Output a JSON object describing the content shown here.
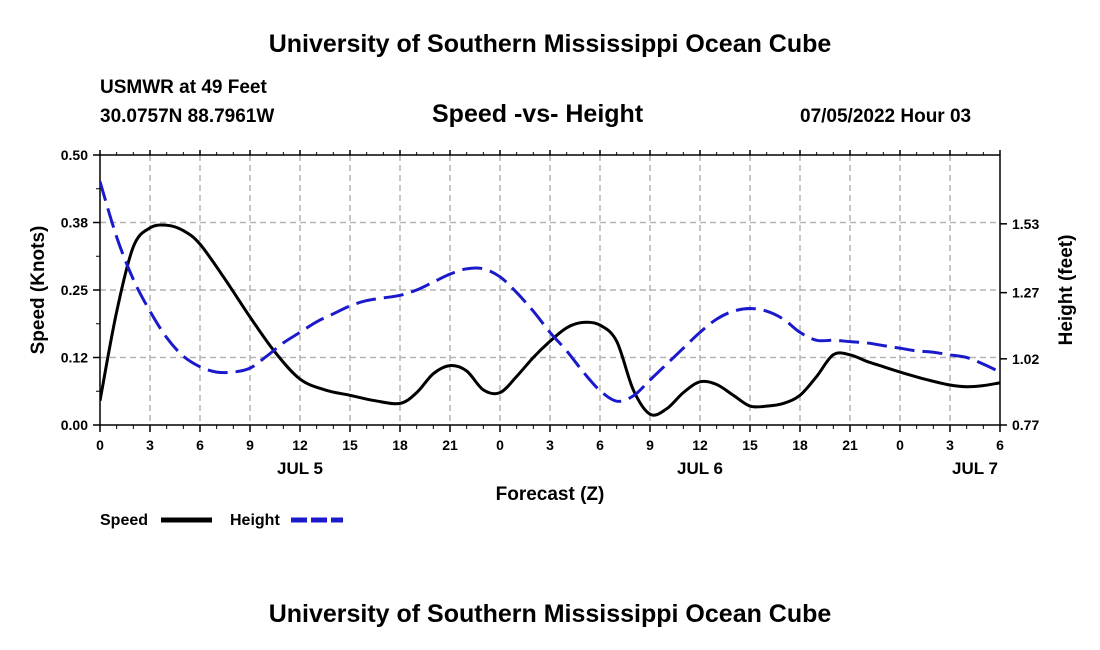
{
  "header": {
    "title": "University of Southern Mississippi Ocean Cube",
    "station": "USMWR at 49 Feet",
    "coords": "30.0757N  88.7961W",
    "chart_title": "Speed -vs- Height",
    "run_time": "07/05/2022 Hour 03"
  },
  "footer": {
    "title": "University of Southern Mississippi Ocean Cube"
  },
  "colors": {
    "speed": "#000000",
    "height": "#1a1acc",
    "grid": "#b4b4b4"
  },
  "chart_data": {
    "type": "line",
    "title": "Speed -vs- Height",
    "xlabel": "Forecast (Z)",
    "ylabel_left": "Speed (Knots)",
    "ylabel_right": "Height (feet)",
    "xlim": [
      0,
      54
    ],
    "ylim_left": [
      0,
      0.5
    ],
    "ylim_right": [
      0.77,
      1.79
    ],
    "x_ticks": [
      0,
      3,
      6,
      9,
      12,
      15,
      18,
      21,
      24,
      27,
      30,
      33,
      36,
      39,
      42,
      45,
      48,
      51,
      54
    ],
    "x_tick_labels": [
      "0",
      "3",
      "6",
      "9",
      "12",
      "15",
      "18",
      "21",
      "0",
      "3",
      "6",
      "9",
      "12",
      "15",
      "18",
      "21",
      "0",
      "3",
      "6"
    ],
    "day_labels": [
      {
        "x": 12,
        "label": "JUL 5"
      },
      {
        "x": 36,
        "label": "JUL 6"
      },
      {
        "x": 52.5,
        "label": "JUL 7"
      }
    ],
    "y_left_ticks": [
      0.0,
      0.125,
      0.25,
      0.375,
      0.5
    ],
    "y_left_tick_labels": [
      "0.00",
      "0.12",
      "0.25",
      "0.38",
      "0.50"
    ],
    "y_right_ticks": [
      0.77,
      1.02,
      1.27,
      1.53
    ],
    "y_right_tick_labels": [
      "0.77",
      "1.02",
      "1.27",
      "1.53"
    ],
    "grid": true,
    "legend_position": "bottom-left",
    "series": [
      {
        "name": "Speed",
        "axis": "left",
        "style": "solid",
        "x": [
          0,
          1,
          2,
          3,
          4,
          5,
          6,
          7.5,
          9,
          10.5,
          12,
          13.5,
          15,
          16.5,
          18,
          19,
          20,
          21,
          22,
          23,
          24,
          25,
          26,
          27,
          28,
          29,
          30,
          31,
          32,
          33,
          34,
          35,
          36,
          37,
          38,
          39,
          40,
          41,
          42,
          43,
          44,
          45,
          46,
          47,
          48,
          49,
          50,
          51,
          52,
          53,
          54
        ],
        "values": [
          0.045,
          0.21,
          0.33,
          0.365,
          0.37,
          0.36,
          0.335,
          0.27,
          0.2,
          0.135,
          0.085,
          0.065,
          0.055,
          0.045,
          0.04,
          0.06,
          0.095,
          0.11,
          0.1,
          0.065,
          0.06,
          0.09,
          0.125,
          0.155,
          0.18,
          0.19,
          0.185,
          0.155,
          0.065,
          0.02,
          0.03,
          0.06,
          0.08,
          0.075,
          0.055,
          0.035,
          0.035,
          0.04,
          0.055,
          0.09,
          0.13,
          0.13,
          0.118,
          0.108,
          0.098,
          0.089,
          0.081,
          0.074,
          0.071,
          0.073,
          0.078
        ]
      },
      {
        "name": "Height",
        "axis": "right",
        "style": "dashed",
        "x": [
          0,
          1,
          2,
          3,
          4,
          5,
          6,
          7,
          8,
          9,
          10,
          11,
          12,
          13,
          14,
          15,
          16,
          17,
          18,
          19,
          20,
          21,
          22,
          23,
          24,
          25,
          26,
          27,
          28,
          29,
          30,
          31,
          32,
          33,
          34,
          35,
          36,
          37,
          38,
          39,
          40,
          41,
          42,
          43,
          44,
          45,
          46,
          47,
          48,
          49,
          50,
          51,
          52,
          53,
          54
        ],
        "values": [
          1.69,
          1.48,
          1.32,
          1.2,
          1.1,
          1.03,
          0.99,
          0.97,
          0.97,
          0.985,
          1.03,
          1.08,
          1.12,
          1.16,
          1.19,
          1.22,
          1.24,
          1.25,
          1.26,
          1.28,
          1.31,
          1.34,
          1.36,
          1.36,
          1.33,
          1.27,
          1.2,
          1.12,
          1.05,
          0.97,
          0.9,
          0.86,
          0.88,
          0.94,
          1.0,
          1.06,
          1.12,
          1.17,
          1.2,
          1.21,
          1.2,
          1.17,
          1.12,
          1.09,
          1.09,
          1.085,
          1.08,
          1.07,
          1.06,
          1.05,
          1.045,
          1.035,
          1.025,
          1.0,
          0.97
        ]
      }
    ]
  }
}
